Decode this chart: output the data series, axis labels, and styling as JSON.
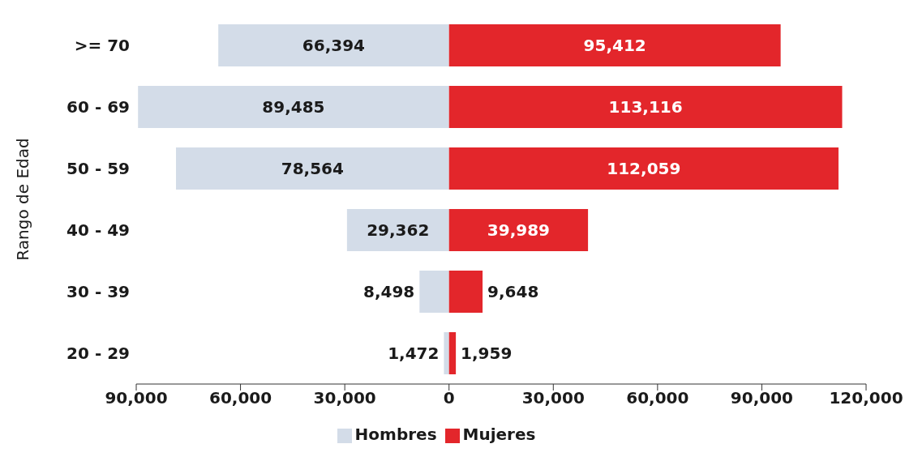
{
  "chart_data": {
    "type": "bar",
    "orientation": "horizontal",
    "ylabel": "Rango de Edad",
    "categories": [
      ">= 70",
      "60 - 69",
      "50 - 59",
      "40 - 49",
      "30 - 39",
      "20 - 29"
    ],
    "series": [
      {
        "name": "Hombres",
        "color": "#d3dce8",
        "values": [
          66394,
          89485,
          78564,
          29362,
          8498,
          1472
        ],
        "base": [
          -66394,
          -89485,
          -78564,
          -29362,
          -8498,
          -1472
        ],
        "value_labels": [
          "66,394",
          "89,485",
          "78,564",
          "29,362",
          "8,498",
          "1,472"
        ]
      },
      {
        "name": "Mujeres",
        "color": "#e3262b",
        "values": [
          95412,
          113116,
          112059,
          39989,
          9648,
          1959
        ],
        "value_labels": [
          "95,412",
          "113,116",
          "112,059",
          "39,989",
          "9,648",
          "1,959"
        ]
      }
    ],
    "xlim": [
      -90000,
      120000
    ],
    "xticks": [
      {
        "value": -90000,
        "label": "90,000"
      },
      {
        "value": -60000,
        "label": "60,000"
      },
      {
        "value": -30000,
        "label": "30,000"
      },
      0,
      {
        "value": 30000,
        "label": "30,000"
      },
      {
        "value": 60000,
        "label": "60,000"
      },
      {
        "value": 90000,
        "label": "90,000"
      },
      {
        "value": 120000,
        "label": "120,000"
      }
    ],
    "grid": false,
    "legend": "bottom"
  }
}
